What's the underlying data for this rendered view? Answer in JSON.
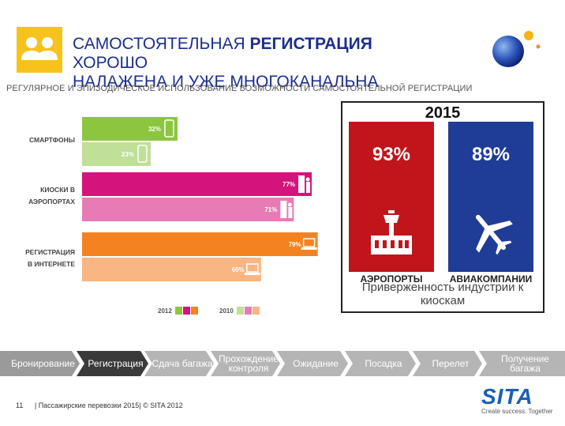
{
  "header": {
    "title_part1": "САМОСТОЯТЕЛЬНАЯ ",
    "title_bold": "РЕГИСТРАЦИЯ",
    "title_part2": " ХОРОШО",
    "title_line2": "НАЛАЖЕНА И УЖЕ МНОГОКАНАЛЬНА",
    "icon": "two-people-icon"
  },
  "chart_data": [
    {
      "type": "bar",
      "title": "РЕГУЛЯРНОЕ И ЭПИЗОДИЧЕСКОЕ ИСПОЛЬЗОВАНИЕ ВОЗМОЖНОСТИ САМОСТОЯТЕЛЬНОЙ РЕГИСТРАЦИИ",
      "orientation": "horizontal",
      "categories": [
        "СМАРТФОНЫ",
        "КИОСКИ В АЭРОПОРТАХ",
        "РЕГИСТРАЦИЯ В ИНТЕРНЕТЕ"
      ],
      "series": [
        {
          "name": "2012",
          "values": [
            32,
            77,
            79
          ],
          "value_labels": [
            "32%",
            "77%",
            "79%"
          ]
        },
        {
          "name": "2010",
          "values": [
            23,
            71,
            60
          ],
          "value_labels": [
            "23%",
            "71%",
            "60%"
          ]
        }
      ],
      "colors_2012": [
        "#8cc63f",
        "#d4147c",
        "#f58220"
      ],
      "colors_2010": [
        "#c0df97",
        "#e77bb6",
        "#f9b582"
      ],
      "bar_icons": [
        "smartphone-icon",
        "kiosk-icon",
        "laptop-icon"
      ],
      "legend": [
        {
          "label": "2012",
          "colors": [
            "#8cc63f",
            "#d4147c",
            "#f58220"
          ]
        },
        {
          "label": "2010",
          "colors": [
            "#c0df97",
            "#e77bb6",
            "#f9b582"
          ]
        }
      ],
      "legend_position": "bottom",
      "xlim": [
        0,
        100
      ],
      "grid": false
    },
    {
      "type": "bar",
      "title": "2015",
      "categories": [
        "АЭРОПОРТЫ",
        "АВИАКОМПАНИИ"
      ],
      "values": [
        93,
        89
      ],
      "value_labels": [
        "93%",
        "89%"
      ],
      "colors": [
        "#c0161b",
        "#1f3c96"
      ],
      "icons": [
        "airport-tower-icon",
        "airplane-icon"
      ],
      "caption": "Приверженность индустрии к киоскам"
    }
  ],
  "process": {
    "steps": [
      {
        "label": "Бронирование",
        "color": "#9a9a9a"
      },
      {
        "label": "Регистрация",
        "color": "#3a3a3a"
      },
      {
        "label": "Сдача багажа",
        "color": "#b5b5b5"
      },
      {
        "label": "Прохождение контроля",
        "color": "#b5b5b5"
      },
      {
        "label": "Ожидание",
        "color": "#b5b5b5"
      },
      {
        "label": "Посадка",
        "color": "#b5b5b5"
      },
      {
        "label": "Перелет",
        "color": "#b5b5b5"
      },
      {
        "label": "Получение багажа",
        "color": "#b5b5b5"
      }
    ]
  },
  "footer": {
    "page": "11",
    "text": "| Пассажирские перевозки 2015| © SITA 2012",
    "brand": "SITA",
    "tagline": "Create success. Together"
  }
}
